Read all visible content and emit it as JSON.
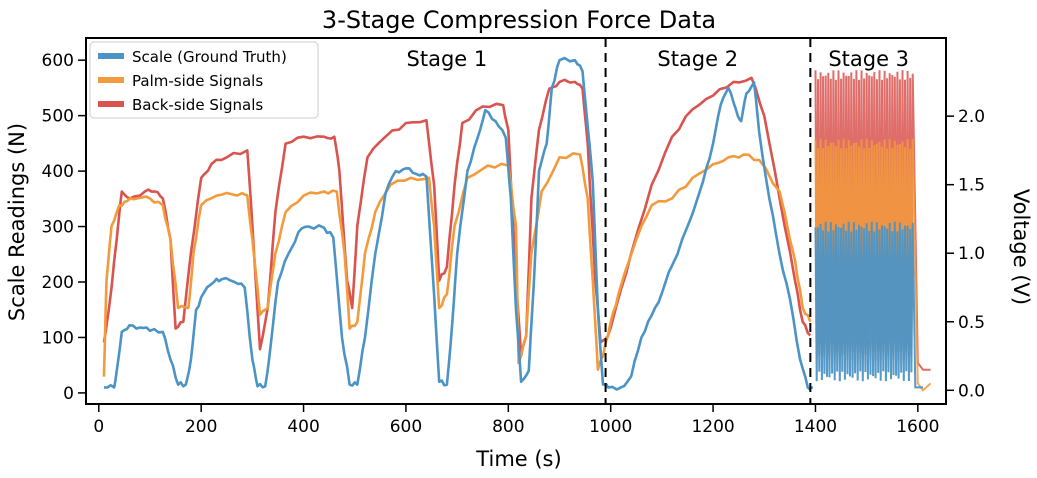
{
  "chart_data": {
    "type": "line",
    "title": "3-Stage Compression Force Data",
    "xlabel": "Time (s)",
    "ylabel": "Scale Readings (N)",
    "y2label": "Voltage (V)",
    "xlim": [
      -25,
      1655
    ],
    "ylim": [
      -20,
      640
    ],
    "y2lim": [
      -0.1,
      2.57
    ],
    "x_ticks": [
      0,
      200,
      400,
      600,
      800,
      1000,
      1200,
      1400,
      1600
    ],
    "y_ticks": [
      0,
      100,
      200,
      300,
      400,
      500,
      600
    ],
    "y2_ticks": [
      0.0,
      0.5,
      1.0,
      1.5,
      2.0
    ],
    "y2_tick_labels": [
      "0.0",
      "0.5",
      "1.0",
      "1.5",
      "2.0"
    ],
    "grid": false,
    "legend_position": "top-left",
    "stage_dividers_x": [
      990,
      1390
    ],
    "stages": [
      {
        "label": "Stage 1",
        "x": 680
      },
      {
        "label": "Stage 2",
        "x": 1170
      },
      {
        "label": "Stage 3",
        "x": 1504
      }
    ],
    "series": [
      {
        "name": "Scale (Ground Truth)",
        "axis": "left",
        "color": "#4c93c6",
        "points": [
          [
            10,
            10
          ],
          [
            30,
            10
          ],
          [
            38,
            60
          ],
          [
            45,
            110
          ],
          [
            60,
            122
          ],
          [
            80,
            118
          ],
          [
            100,
            112
          ],
          [
            125,
            110
          ],
          [
            140,
            60
          ],
          [
            155,
            15
          ],
          [
            170,
            15
          ],
          [
            180,
            60
          ],
          [
            190,
            150
          ],
          [
            205,
            180
          ],
          [
            225,
            200
          ],
          [
            240,
            205
          ],
          [
            265,
            200
          ],
          [
            285,
            190
          ],
          [
            300,
            60
          ],
          [
            310,
            12
          ],
          [
            325,
            12
          ],
          [
            335,
            80
          ],
          [
            350,
            200
          ],
          [
            370,
            250
          ],
          [
            390,
            290
          ],
          [
            410,
            300
          ],
          [
            440,
            298
          ],
          [
            458,
            280
          ],
          [
            475,
            100
          ],
          [
            490,
            15
          ],
          [
            505,
            15
          ],
          [
            520,
            100
          ],
          [
            540,
            250
          ],
          [
            560,
            360
          ],
          [
            580,
            400
          ],
          [
            600,
            405
          ],
          [
            620,
            395
          ],
          [
            640,
            390
          ],
          [
            650,
            250
          ],
          [
            665,
            20
          ],
          [
            680,
            15
          ],
          [
            690,
            120
          ],
          [
            700,
            250
          ],
          [
            720,
            400
          ],
          [
            740,
            460
          ],
          [
            755,
            510
          ],
          [
            775,
            490
          ],
          [
            795,
            460
          ],
          [
            805,
            350
          ],
          [
            815,
            150
          ],
          [
            825,
            20
          ],
          [
            840,
            40
          ],
          [
            850,
            200
          ],
          [
            860,
            400
          ],
          [
            875,
            450
          ],
          [
            885,
            550
          ],
          [
            900,
            600
          ],
          [
            930,
            600
          ],
          [
            945,
            580
          ],
          [
            955,
            480
          ],
          [
            965,
            380
          ],
          [
            975,
            150
          ],
          [
            985,
            15
          ],
          [
            995,
            10
          ],
          [
            1020,
            10
          ],
          [
            1040,
            30
          ],
          [
            1060,
            100
          ],
          [
            1080,
            140
          ],
          [
            1100,
            180
          ],
          [
            1120,
            230
          ],
          [
            1150,
            300
          ],
          [
            1180,
            380
          ],
          [
            1200,
            450
          ],
          [
            1215,
            520
          ],
          [
            1230,
            550
          ],
          [
            1245,
            510
          ],
          [
            1255,
            490
          ],
          [
            1265,
            540
          ],
          [
            1280,
            560
          ],
          [
            1290,
            470
          ],
          [
            1310,
            350
          ],
          [
            1330,
            250
          ],
          [
            1350,
            170
          ],
          [
            1370,
            60
          ],
          [
            1385,
            10
          ],
          [
            1395,
            10
          ]
        ]
      },
      {
        "name": "Palm-side Signals",
        "axis": "right",
        "color": "#f39a3c",
        "points": [
          [
            10,
            0.1
          ],
          [
            15,
            0.8
          ],
          [
            25,
            1.2
          ],
          [
            40,
            1.35
          ],
          [
            55,
            1.38
          ],
          [
            75,
            1.4
          ],
          [
            100,
            1.4
          ],
          [
            125,
            1.35
          ],
          [
            140,
            1.1
          ],
          [
            155,
            0.6
          ],
          [
            175,
            0.6
          ],
          [
            185,
            1.0
          ],
          [
            200,
            1.35
          ],
          [
            230,
            1.42
          ],
          [
            260,
            1.43
          ],
          [
            290,
            1.42
          ],
          [
            300,
            1.1
          ],
          [
            315,
            0.55
          ],
          [
            330,
            0.6
          ],
          [
            345,
            1.0
          ],
          [
            365,
            1.3
          ],
          [
            400,
            1.42
          ],
          [
            440,
            1.45
          ],
          [
            465,
            1.45
          ],
          [
            480,
            1.0
          ],
          [
            490,
            0.45
          ],
          [
            505,
            0.5
          ],
          [
            520,
            1.0
          ],
          [
            540,
            1.3
          ],
          [
            570,
            1.5
          ],
          [
            610,
            1.55
          ],
          [
            645,
            1.55
          ],
          [
            655,
            1.2
          ],
          [
            665,
            0.6
          ],
          [
            680,
            0.7
          ],
          [
            695,
            1.2
          ],
          [
            720,
            1.55
          ],
          [
            760,
            1.64
          ],
          [
            800,
            1.64
          ],
          [
            815,
            1.2
          ],
          [
            820,
            0.2
          ],
          [
            835,
            0.4
          ],
          [
            845,
            1.0
          ],
          [
            865,
            1.45
          ],
          [
            900,
            1.7
          ],
          [
            940,
            1.72
          ],
          [
            955,
            1.4
          ],
          [
            965,
            0.8
          ],
          [
            975,
            0.15
          ],
          [
            985,
            0.25
          ],
          [
            1000,
            0.5
          ],
          [
            1015,
            0.7
          ],
          [
            1050,
            1.1
          ],
          [
            1080,
            1.35
          ],
          [
            1120,
            1.4
          ],
          [
            1160,
            1.55
          ],
          [
            1200,
            1.65
          ],
          [
            1230,
            1.7
          ],
          [
            1260,
            1.72
          ],
          [
            1290,
            1.68
          ],
          [
            1330,
            1.45
          ],
          [
            1360,
            0.95
          ],
          [
            1375,
            0.6
          ],
          [
            1390,
            0.5
          ]
        ]
      },
      {
        "name": "Back-side Signals",
        "axis": "right",
        "color": "#d9534f",
        "points": [
          [
            10,
            0.35
          ],
          [
            20,
            0.6
          ],
          [
            35,
            1.1
          ],
          [
            45,
            1.45
          ],
          [
            60,
            1.4
          ],
          [
            90,
            1.45
          ],
          [
            110,
            1.45
          ],
          [
            125,
            1.4
          ],
          [
            140,
            1.1
          ],
          [
            150,
            0.45
          ],
          [
            165,
            0.5
          ],
          [
            180,
            1.0
          ],
          [
            200,
            1.55
          ],
          [
            220,
            1.65
          ],
          [
            250,
            1.7
          ],
          [
            290,
            1.75
          ],
          [
            300,
            1.2
          ],
          [
            315,
            0.3
          ],
          [
            330,
            0.6
          ],
          [
            345,
            1.3
          ],
          [
            365,
            1.8
          ],
          [
            400,
            1.85
          ],
          [
            440,
            1.85
          ],
          [
            460,
            1.85
          ],
          [
            470,
            1.6
          ],
          [
            485,
            0.8
          ],
          [
            495,
            0.6
          ],
          [
            505,
            1.2
          ],
          [
            525,
            1.7
          ],
          [
            560,
            1.85
          ],
          [
            600,
            1.95
          ],
          [
            640,
            1.97
          ],
          [
            655,
            1.5
          ],
          [
            665,
            0.8
          ],
          [
            680,
            0.9
          ],
          [
            695,
            1.5
          ],
          [
            710,
            1.95
          ],
          [
            750,
            2.07
          ],
          [
            790,
            2.08
          ],
          [
            800,
            1.9
          ],
          [
            815,
            0.8
          ],
          [
            825,
            0.25
          ],
          [
            835,
            0.4
          ],
          [
            845,
            1.4
          ],
          [
            860,
            1.9
          ],
          [
            880,
            2.2
          ],
          [
            900,
            2.25
          ],
          [
            930,
            2.25
          ],
          [
            945,
            2.2
          ],
          [
            955,
            1.8
          ],
          [
            970,
            0.8
          ],
          [
            980,
            0.35
          ],
          [
            995,
            0.4
          ],
          [
            1010,
            0.6
          ],
          [
            1040,
            1.0
          ],
          [
            1080,
            1.5
          ],
          [
            1120,
            1.85
          ],
          [
            1160,
            2.05
          ],
          [
            1200,
            2.15
          ],
          [
            1240,
            2.25
          ],
          [
            1275,
            2.28
          ],
          [
            1300,
            2.0
          ],
          [
            1330,
            1.4
          ],
          [
            1360,
            0.8
          ],
          [
            1375,
            0.5
          ],
          [
            1390,
            0.4
          ]
        ]
      }
    ],
    "stage3": {
      "x_start": 1400,
      "x_end": 1590,
      "back_range": [
        0.3,
        2.3
      ],
      "palm_range": [
        0.25,
        1.8
      ],
      "scale_range": [
        30,
        300
      ]
    }
  }
}
